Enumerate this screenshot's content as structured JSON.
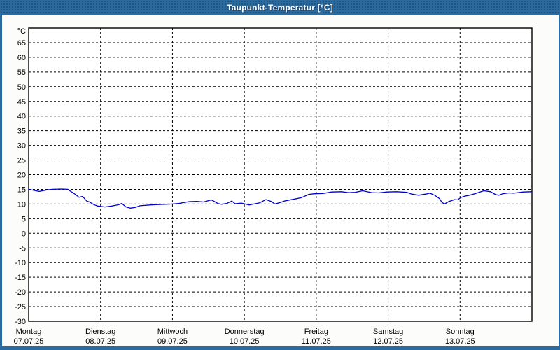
{
  "window": {
    "title": "Taupunkt-Temperatur [°C]"
  },
  "colors": {
    "title_bar": "#2B6B9F",
    "window_border": "#2B6B9F",
    "content_bg": "#FCFDFA",
    "plot_bg": "#FFFFFF",
    "grid": "#000000",
    "axis": "#000000",
    "text": "#000000",
    "line": "#0000CC",
    "title_text": "#FFFFFF"
  },
  "chart_data": {
    "type": "line",
    "title": "Taupunkt-Temperatur [°C]",
    "ylabel": "°C",
    "xlabel": "",
    "ylim": [
      -30,
      70
    ],
    "yticks": [
      -30,
      -25,
      -20,
      -15,
      -10,
      -5,
      0,
      5,
      10,
      15,
      20,
      25,
      30,
      35,
      40,
      45,
      50,
      55,
      60,
      65
    ],
    "grid": true,
    "legend": "none",
    "x_axis": {
      "hours_total": 168,
      "days": [
        {
          "name": "Montag",
          "date": "07.07.25"
        },
        {
          "name": "Dienstag",
          "date": "08.07.25"
        },
        {
          "name": "Mittwoch",
          "date": "09.07.25"
        },
        {
          "name": "Donnerstag",
          "date": "10.07.25"
        },
        {
          "name": "Freitag",
          "date": "11.07.25"
        },
        {
          "name": "Samstag",
          "date": "12.07.25"
        },
        {
          "name": "Sonntag",
          "date": "13.07.25"
        }
      ]
    },
    "series": [
      {
        "name": "Taupunkt-Temperatur",
        "unit": "°C",
        "color": "#0000CC",
        "points": [
          [
            0,
            15.0
          ],
          [
            2,
            14.6
          ],
          [
            3.5,
            14.3
          ],
          [
            6,
            14.8
          ],
          [
            8,
            15.0
          ],
          [
            11,
            15.1
          ],
          [
            13,
            15.0
          ],
          [
            14.5,
            14.0
          ],
          [
            15.7,
            13.2
          ],
          [
            16.8,
            12.3
          ],
          [
            18,
            12.6
          ],
          [
            19.4,
            11.0
          ],
          [
            20.3,
            10.7
          ],
          [
            21.7,
            9.8
          ],
          [
            23,
            9.3
          ],
          [
            24,
            9.2
          ],
          [
            25.5,
            9.0
          ],
          [
            27.8,
            9.3
          ],
          [
            30.2,
            9.8
          ],
          [
            31.1,
            10.2
          ],
          [
            32.5,
            9.0
          ],
          [
            33.9,
            8.6
          ],
          [
            35.5,
            8.8
          ],
          [
            37.2,
            9.4
          ],
          [
            40.7,
            9.7
          ],
          [
            43,
            9.8
          ],
          [
            45.4,
            9.9
          ],
          [
            48,
            10.0
          ],
          [
            50.1,
            10.2
          ],
          [
            53.6,
            10.8
          ],
          [
            56.1,
            10.9
          ],
          [
            58.4,
            10.7
          ],
          [
            61,
            11.4
          ],
          [
            63.1,
            10.2
          ],
          [
            64.3,
            9.9
          ],
          [
            66.1,
            10.2
          ],
          [
            67.8,
            11.0
          ],
          [
            68.9,
            10.1
          ],
          [
            71,
            10.3
          ],
          [
            73.6,
            9.7
          ],
          [
            77.1,
            10.4
          ],
          [
            79.2,
            11.5
          ],
          [
            81.1,
            10.8
          ],
          [
            82.2,
            10.0
          ],
          [
            83.6,
            10.4
          ],
          [
            85.7,
            11.1
          ],
          [
            88.8,
            11.7
          ],
          [
            91.1,
            12.2
          ],
          [
            93.5,
            13.3
          ],
          [
            95.4,
            13.5
          ],
          [
            98.2,
            13.6
          ],
          [
            101.2,
            14.1
          ],
          [
            104.4,
            14.2
          ],
          [
            106.8,
            13.9
          ],
          [
            109.1,
            14.0
          ],
          [
            111.5,
            14.5
          ],
          [
            114.5,
            13.9
          ],
          [
            116.8,
            13.8
          ],
          [
            119.6,
            14.1
          ],
          [
            122.7,
            14.2
          ],
          [
            126.2,
            14.0
          ],
          [
            127.8,
            13.4
          ],
          [
            130.2,
            13.0
          ],
          [
            132.5,
            13.4
          ],
          [
            133.9,
            13.7
          ],
          [
            135.5,
            13.0
          ],
          [
            137.2,
            11.8
          ],
          [
            137.9,
            10.6
          ],
          [
            138.8,
            10.0
          ],
          [
            140.2,
            10.8
          ],
          [
            142.1,
            11.5
          ],
          [
            143.2,
            11.4
          ],
          [
            144.2,
            12.2
          ],
          [
            145.6,
            12.7
          ],
          [
            147.2,
            13.0
          ],
          [
            148.9,
            13.5
          ],
          [
            151.9,
            14.5
          ],
          [
            154.2,
            14.2
          ],
          [
            155.9,
            13.2
          ],
          [
            157,
            13.0
          ],
          [
            158.2,
            13.5
          ],
          [
            160.3,
            13.8
          ],
          [
            161.9,
            13.7
          ],
          [
            165.2,
            14.1
          ],
          [
            168,
            14.2
          ]
        ]
      }
    ]
  }
}
